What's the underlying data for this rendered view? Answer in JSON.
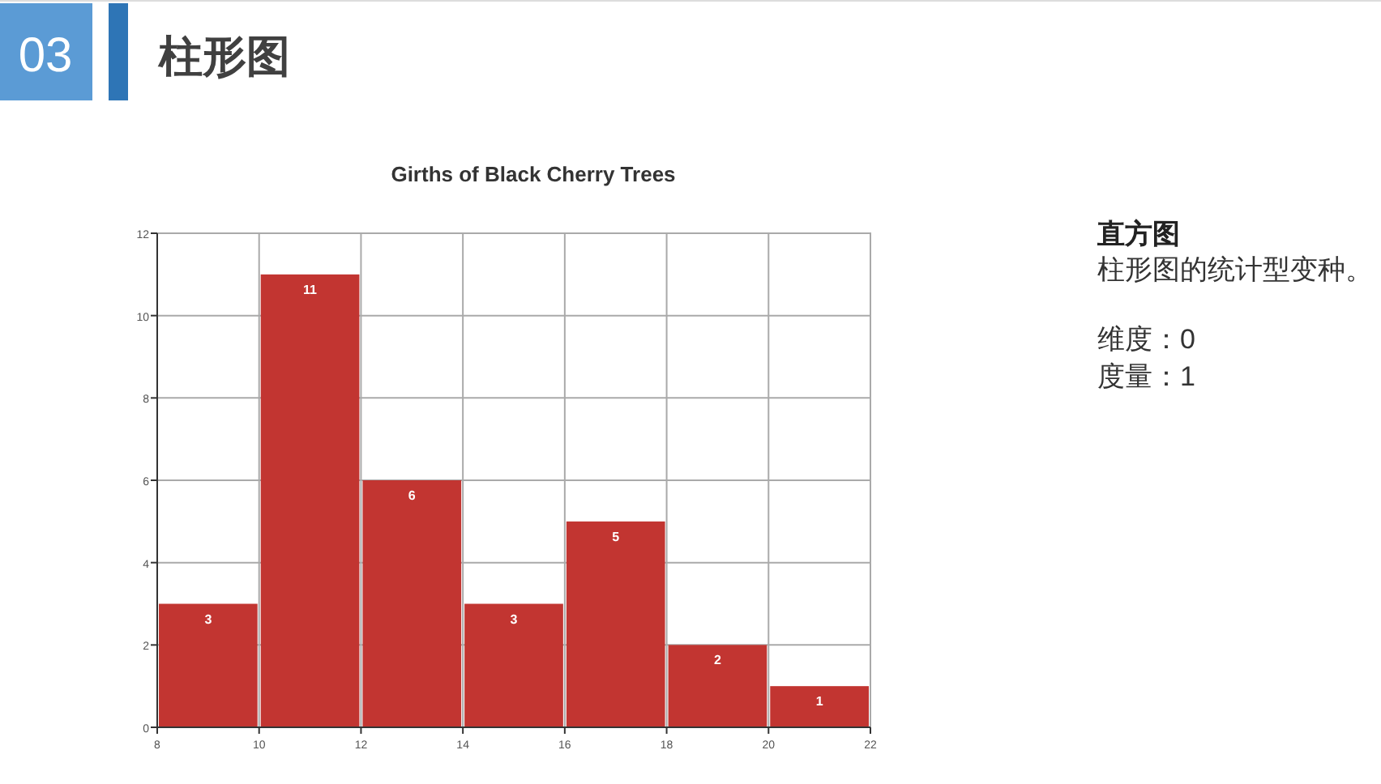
{
  "chart_data": [
    {
      "type": "other",
      "title": "柱形图",
      "annotations": [
        "03"
      ]
    },
    {
      "type": "histogram",
      "title": "Girths of Black Cherry Trees",
      "bins": [
        8,
        10,
        12,
        14,
        16,
        18,
        20,
        22
      ],
      "values": [
        3,
        11,
        6,
        3,
        5,
        2,
        1
      ],
      "color": "#c23531",
      "xlim": [
        8,
        22
      ],
      "ylim": [
        0,
        12
      ],
      "xticks": [
        8,
        10,
        12,
        14,
        16,
        18,
        20,
        22
      ],
      "yticks": [
        0,
        2,
        4,
        6,
        8,
        10,
        12
      ],
      "grid": true,
      "data_labels": true
    },
    {
      "type": "other",
      "title": "直方图",
      "annotations": [
        "柱形图的统计型变种。",
        "维度：0",
        "度量：1"
      ]
    }
  ]
}
